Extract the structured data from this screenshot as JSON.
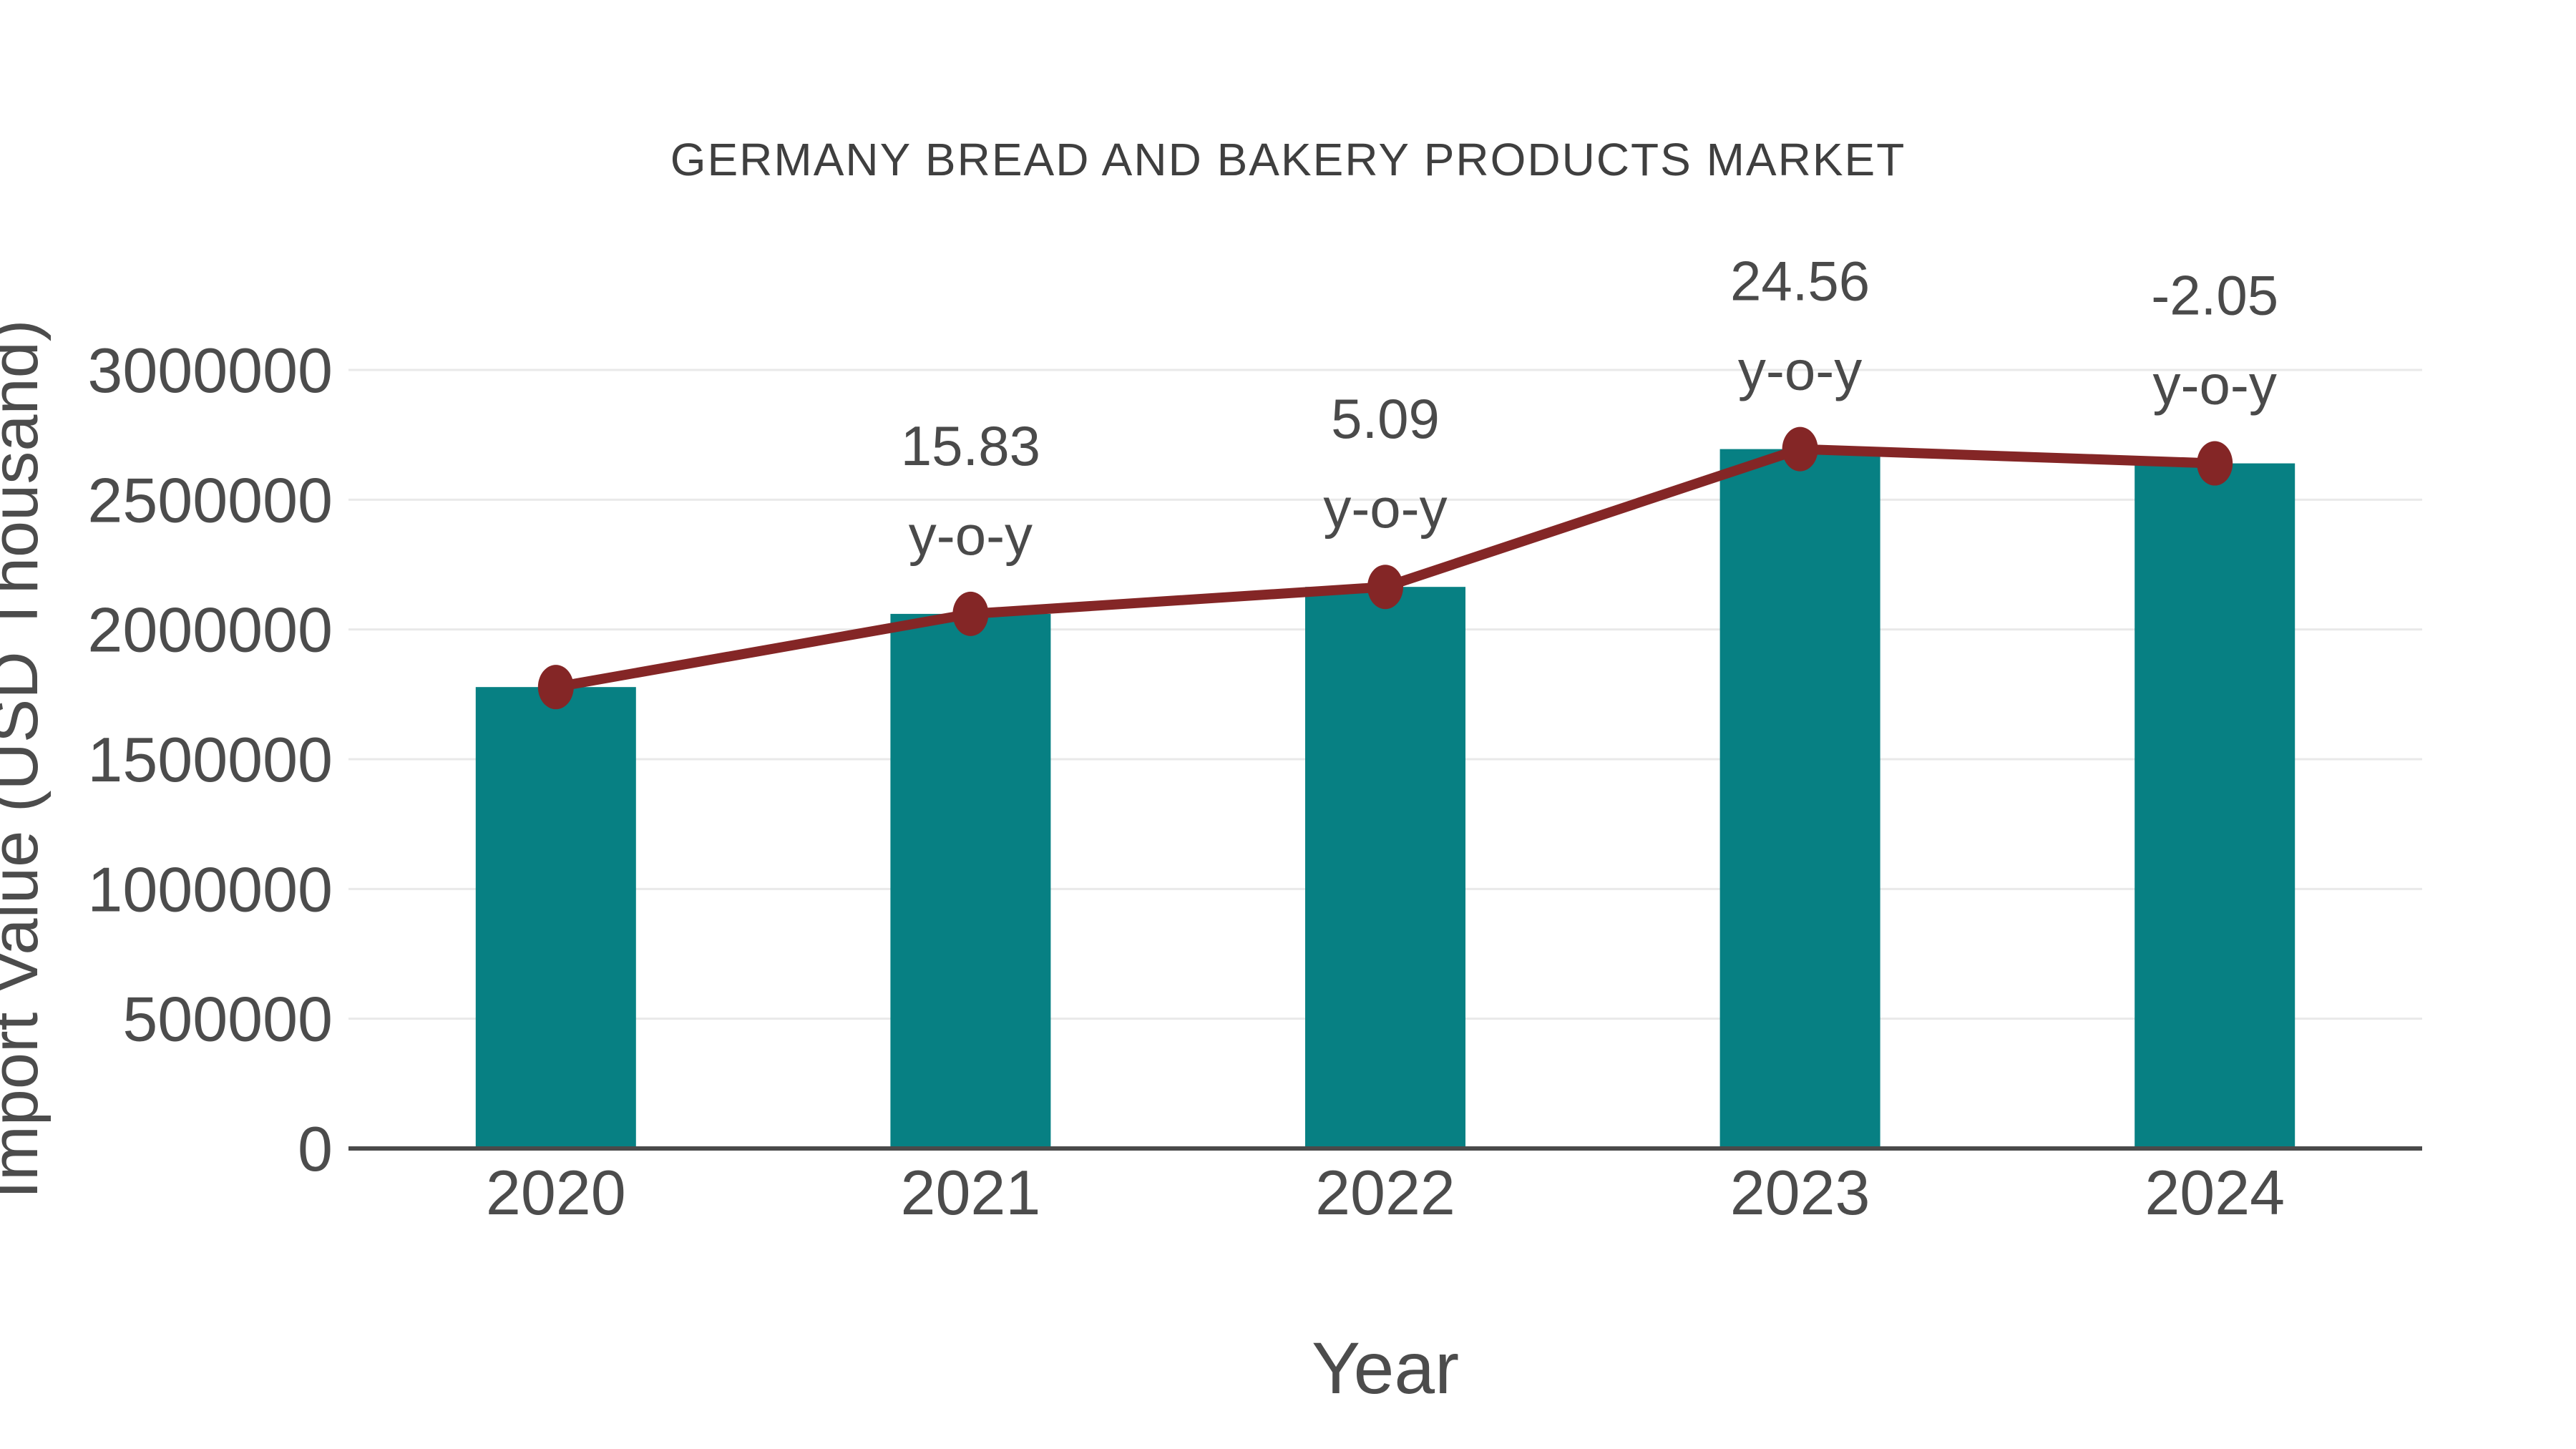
{
  "chart_data": {
    "type": "bar+line",
    "title": "GERMANY BREAD AND BAKERY PRODUCTS MARKET",
    "xlabel": "Year",
    "ylabel": "Import Value (USD Thousand)",
    "categories": [
      "2020",
      "2021",
      "2022",
      "2023",
      "2024"
    ],
    "series": [
      {
        "name": "Import Value (USD Thousand)",
        "type": "bar",
        "color": "#078083",
        "values": [
          1778000,
          2060000,
          2164000,
          2695000,
          2640000
        ]
      },
      {
        "name": "y-o-y change",
        "type": "line",
        "color": "#842626",
        "values": [
          1778000,
          2060000,
          2164000,
          2695000,
          2640000
        ],
        "point_labels": [
          null,
          "15.83",
          "5.09",
          "24.56",
          "-2.05"
        ],
        "point_label_suffix": "y-o-y"
      }
    ],
    "ylim": [
      0,
      3000000
    ],
    "yticks": [
      0,
      500000,
      1000000,
      1500000,
      2000000,
      2500000,
      3000000
    ],
    "grid": true,
    "legend_position": "none"
  },
  "colors": {
    "background": "#ffffff",
    "bar": "#078083",
    "line": "#842626",
    "marker": "#842626",
    "gridline": "#e9e9e9",
    "axis_line": "#4a4a4a",
    "text": "#4c4c4c",
    "title_text": "#3f3f3f"
  }
}
